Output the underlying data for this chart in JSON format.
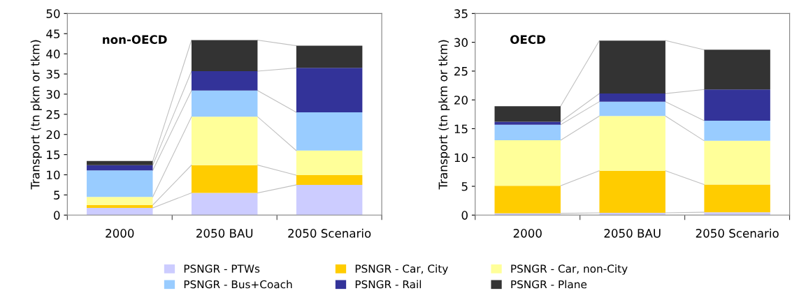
{
  "chart_data": [
    {
      "type": "bar",
      "stacked": true,
      "categories": [
        "2000",
        "2050 BAU",
        "2050 Scenario"
      ],
      "ylabel": "Transport (tn pkm or tkm)",
      "ylim": [
        0,
        50
      ],
      "yticks": [
        0,
        5,
        10,
        15,
        20,
        25,
        30,
        35,
        40,
        45,
        50
      ],
      "grid": false,
      "legend": "bottom",
      "annotations": [
        "non-OECD"
      ],
      "series": [
        {
          "name": "PSNGR - PTWs",
          "color": "#ccccff",
          "values": [
            1.8,
            5.5,
            7.5
          ]
        },
        {
          "name": "PSNGR - Car, City",
          "color": "#ffcc00",
          "values": [
            0.7,
            6.9,
            2.4
          ]
        },
        {
          "name": "PSNGR - Car, non-City",
          "color": "#ffff99",
          "values": [
            2.0,
            12.0,
            6.1
          ]
        },
        {
          "name": "PSNGR - Bus+Coach",
          "color": "#99ccff",
          "values": [
            6.6,
            6.5,
            9.5
          ]
        },
        {
          "name": "PSNGR - Rail",
          "color": "#333399",
          "values": [
            1.3,
            4.8,
            11.0
          ]
        },
        {
          "name": "PSNGR - Plane",
          "color": "#333333",
          "values": [
            1.0,
            7.7,
            5.5
          ]
        }
      ]
    },
    {
      "type": "bar",
      "stacked": true,
      "categories": [
        "2000",
        "2050 BAU",
        "2050 Scenario"
      ],
      "ylabel": "Transport (tn pkm or tkm)",
      "ylim": [
        0,
        35
      ],
      "yticks": [
        0,
        5,
        10,
        15,
        20,
        25,
        30,
        35
      ],
      "grid": false,
      "legend": "bottom",
      "annotations": [
        "OECD"
      ],
      "series": [
        {
          "name": "PSNGR - PTWs",
          "color": "#ccccff",
          "values": [
            0.3,
            0.4,
            0.5
          ]
        },
        {
          "name": "PSNGR - Car, City",
          "color": "#ffcc00",
          "values": [
            4.8,
            7.3,
            4.8
          ]
        },
        {
          "name": "PSNGR - Car, non-City",
          "color": "#ffff99",
          "values": [
            7.9,
            9.5,
            7.6
          ]
        },
        {
          "name": "PSNGR - Bus+Coach",
          "color": "#99ccff",
          "values": [
            2.7,
            2.5,
            3.5
          ]
        },
        {
          "name": "PSNGR - Rail",
          "color": "#333399",
          "values": [
            0.5,
            1.4,
            5.4
          ]
        },
        {
          "name": "PSNGR - Plane",
          "color": "#333333",
          "values": [
            2.7,
            9.2,
            6.9
          ]
        }
      ]
    }
  ]
}
